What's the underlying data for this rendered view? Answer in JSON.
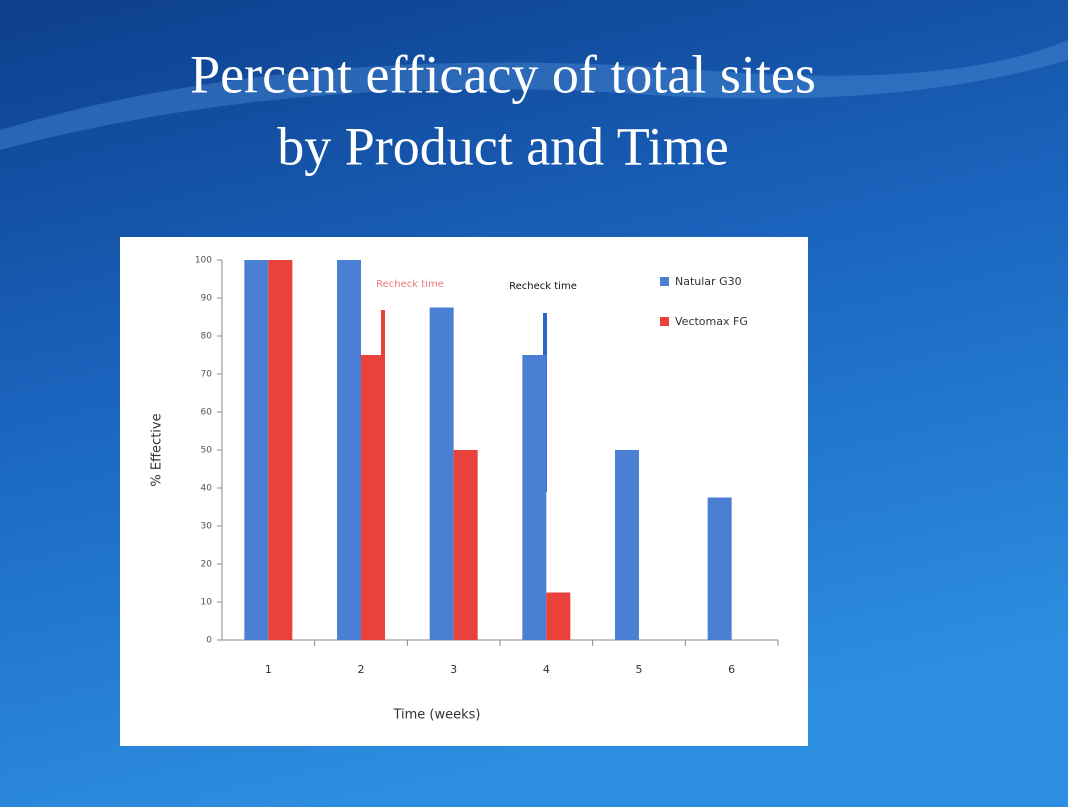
{
  "chart_data": {
    "type": "bar",
    "title": [
      "Percent efficacy of total sites",
      "by Product and Time"
    ],
    "categories": [
      "1",
      "2",
      "3",
      "4",
      "5",
      "6"
    ],
    "series": [
      {
        "name": "Natular G30",
        "color": "#4a7fd4",
        "values": [
          100,
          100,
          87.5,
          75,
          50,
          37.5
        ]
      },
      {
        "name": "Vectomax FG",
        "color": "#e8423a",
        "values": [
          100,
          75,
          50,
          12.5,
          null,
          null
        ]
      }
    ],
    "ylim": [
      0,
      100
    ],
    "yticks": [
      0,
      10,
      20,
      30,
      40,
      50,
      60,
      70,
      80,
      90,
      100
    ],
    "y_label": "% Effective",
    "x_label": "Time (weeks)",
    "annotations": [
      {
        "text": "Recheck time",
        "color": "#f07a7a"
      },
      {
        "text": "Recheck time",
        "color": "#111111"
      }
    ],
    "legend": "top-right"
  }
}
